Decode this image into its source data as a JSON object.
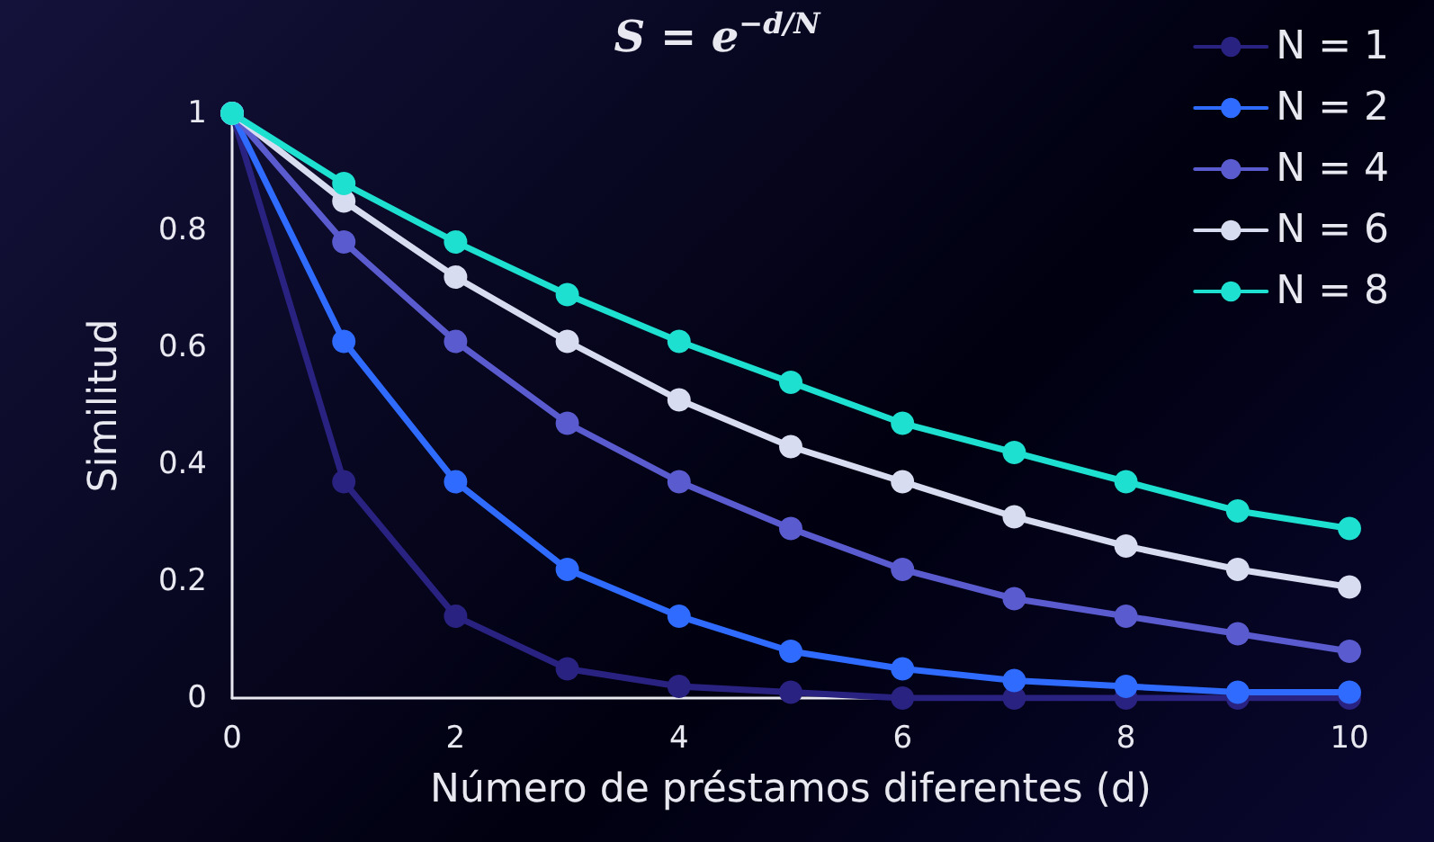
{
  "chart_data": {
    "type": "line",
    "title": "S = e$^{−d/N}$",
    "xlabel": "Número de préstamos diferentes (d)",
    "ylabel": "Similitud",
    "x": [
      0,
      1,
      2,
      3,
      4,
      5,
      6,
      7,
      8,
      9,
      10
    ],
    "xlim": [
      0,
      10
    ],
    "xticks": [
      0,
      2,
      4,
      6,
      8,
      10
    ],
    "ylim": [
      0,
      1
    ],
    "yticks": [
      0,
      0.2,
      0.4,
      0.6,
      0.8,
      1
    ],
    "grid": false,
    "legend": "top right",
    "marker": "circle",
    "line_style": "solid",
    "series": [
      {
        "name": "N = 1",
        "color": "#2a2280",
        "values": [
          1,
          0.37,
          0.14,
          0.05,
          0.02,
          0.01,
          0,
          0,
          0,
          0,
          0
        ]
      },
      {
        "name": "N = 2",
        "color": "#2f6bff",
        "values": [
          1,
          0.61,
          0.37,
          0.22,
          0.14,
          0.08,
          0.05,
          0.03,
          0.02,
          0.01,
          0.01
        ]
      },
      {
        "name": "N = 4",
        "color": "#5b5bd0",
        "values": [
          1,
          0.78,
          0.61,
          0.47,
          0.37,
          0.29,
          0.22,
          0.17,
          0.14,
          0.11,
          0.08
        ]
      },
      {
        "name": "N = 6",
        "color": "#d8dcf0",
        "values": [
          1,
          0.85,
          0.72,
          0.61,
          0.51,
          0.43,
          0.37,
          0.31,
          0.26,
          0.22,
          0.19
        ]
      },
      {
        "name": "N = 8",
        "color": "#1de0d0",
        "values": [
          1,
          0.88,
          0.78,
          0.69,
          0.61,
          0.54,
          0.47,
          0.42,
          0.37,
          0.32,
          0.29
        ]
      }
    ]
  }
}
